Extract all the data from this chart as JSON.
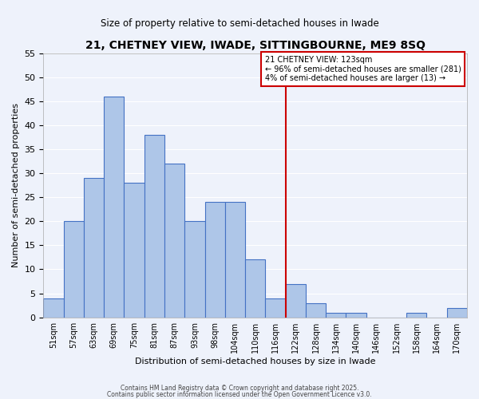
{
  "title": "21, CHETNEY VIEW, IWADE, SITTINGBOURNE, ME9 8SQ",
  "subtitle": "Size of property relative to semi-detached houses in Iwade",
  "xlabel": "Distribution of semi-detached houses by size in Iwade",
  "ylabel": "Number of semi-detached properties",
  "bar_labels": [
    "51sqm",
    "57sqm",
    "63sqm",
    "69sqm",
    "75sqm",
    "81sqm",
    "87sqm",
    "93sqm",
    "98sqm",
    "104sqm",
    "110sqm",
    "116sqm",
    "122sqm",
    "128sqm",
    "134sqm",
    "140sqm",
    "146sqm",
    "152sqm",
    "158sqm",
    "164sqm",
    "170sqm"
  ],
  "bar_values": [
    4,
    20,
    29,
    46,
    28,
    38,
    32,
    20,
    24,
    24,
    12,
    4,
    7,
    3,
    1,
    1,
    0,
    0,
    1,
    0,
    2
  ],
  "bar_color": "#aec6e8",
  "bar_edge_color": "#4472c4",
  "vline_x": 12,
  "vline_color": "#cc0000",
  "annotation_title": "21 CHETNEY VIEW: 123sqm",
  "annotation_line1": "← 96% of semi-detached houses are smaller (281)",
  "annotation_line2": "4% of semi-detached houses are larger (13) →",
  "annotation_box_color": "#ffffff",
  "annotation_box_edge": "#cc0000",
  "ylim": [
    0,
    55
  ],
  "yticks": [
    0,
    5,
    10,
    15,
    20,
    25,
    30,
    35,
    40,
    45,
    50,
    55
  ],
  "background_color": "#eef2fb",
  "grid_color": "#ffffff",
  "footer1": "Contains HM Land Registry data © Crown copyright and database right 2025.",
  "footer2": "Contains public sector information licensed under the Open Government Licence v3.0."
}
